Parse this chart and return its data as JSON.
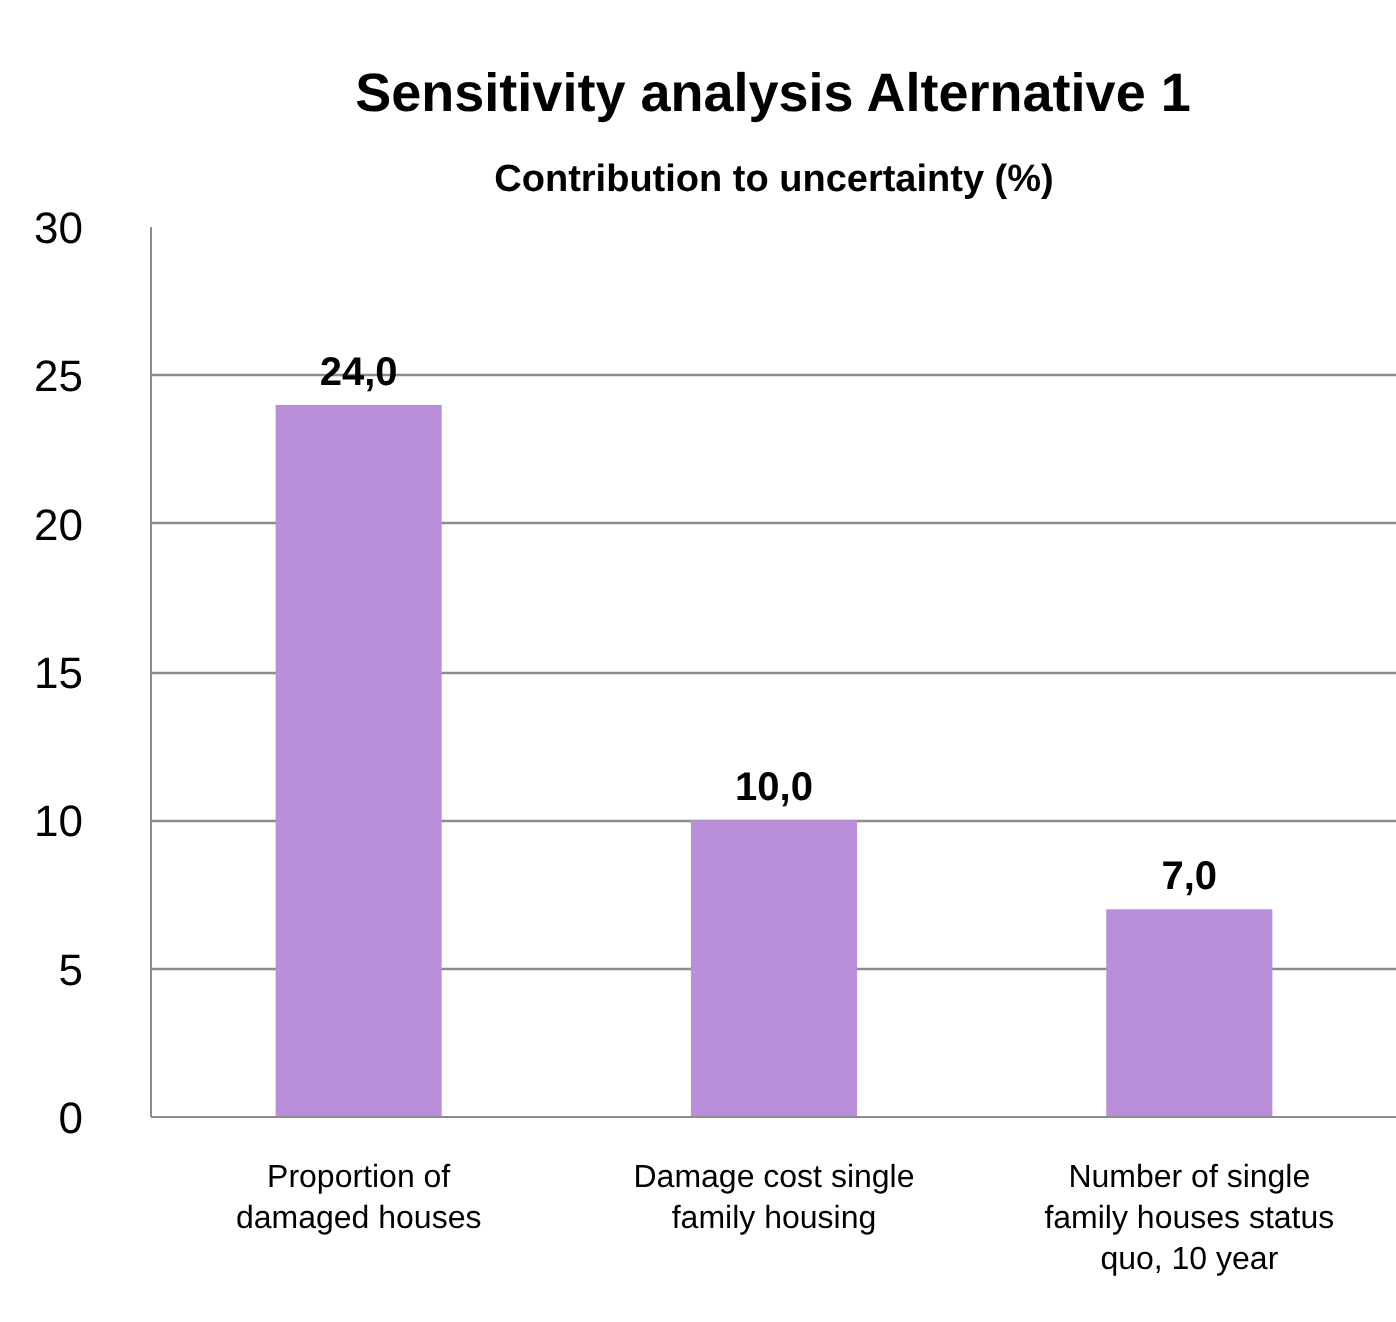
{
  "chart_data": {
    "type": "bar",
    "title": "Sensitivity analysis Alternative 1",
    "subtitle": "Contribution to uncertainty (%)",
    "categories": [
      "Proportion of damaged houses",
      "Damage cost single family housing",
      "Number of single family houses status quo, 10 year"
    ],
    "values": [
      24.0,
      10.0,
      7.0
    ],
    "value_labels": [
      "24,0",
      "10,0",
      "7,0"
    ],
    "color": "#b98fdb",
    "ylim": [
      0,
      30
    ],
    "yticks": [
      0,
      5,
      10,
      15,
      20,
      25,
      30
    ],
    "grid": "y"
  }
}
